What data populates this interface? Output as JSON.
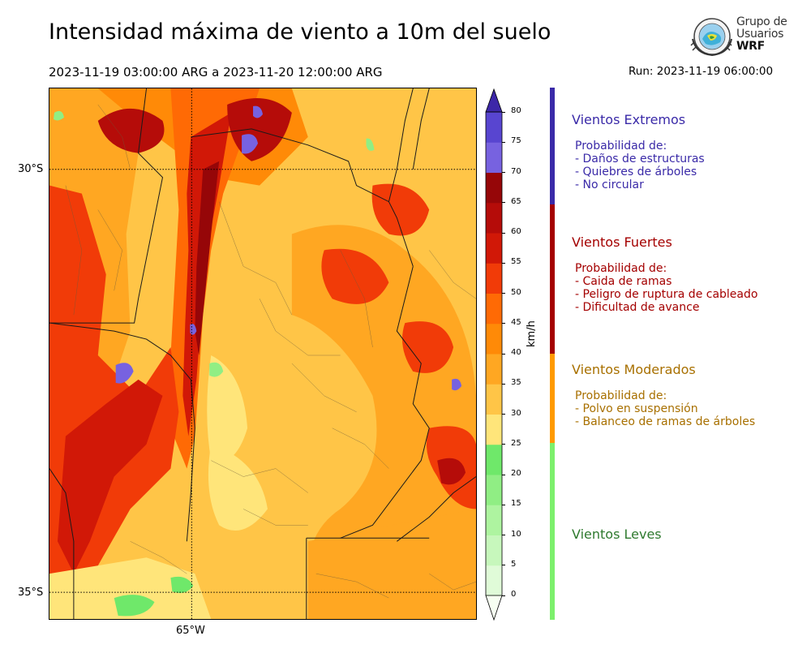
{
  "header": {
    "title": "Intensidad máxima de viento a 10m del suelo",
    "period": "2023-11-19 03:00:00 ARG  a  2023-11-20 12:00:00 ARG",
    "run": "Run: 2023-11-19 06:00:00"
  },
  "logo": {
    "line1": "Grupo de",
    "line2": "Usuarios",
    "line3": "WRF"
  },
  "map": {
    "lat_labels": [
      "30°S",
      "35°S"
    ],
    "lon_labels": [
      "65°W"
    ]
  },
  "colorbar": {
    "unit": "km/h",
    "ticks": [
      "0",
      "5",
      "10",
      "15",
      "20",
      "25",
      "30",
      "35",
      "40",
      "45",
      "50",
      "55",
      "60",
      "65",
      "70",
      "75",
      "80"
    ],
    "colors": [
      "#f7fff2",
      "#e0fbd8",
      "#c7f7bc",
      "#aef4a0",
      "#90ee84",
      "#6fe86a",
      "#ffe57a",
      "#ffc547",
      "#ffa722",
      "#ff8a07",
      "#ff6a05",
      "#f13b08",
      "#d11807",
      "#b50c09",
      "#960608",
      "#7762e0",
      "#5845d0",
      "#3f2fb7",
      "#3d27a8"
    ]
  },
  "categories": [
    {
      "title": "Vientos Extremos",
      "color": "#3a2aa8",
      "lines": [
        "Probabilidad de:",
        "- Daños de estructuras",
        "- Quiebres de árboles",
        "- No circular"
      ]
    },
    {
      "title": "Vientos Fuertes",
      "color": "#a40000",
      "lines": [
        "Probabilidad de:",
        "- Caida de ramas",
        "- Peligro de ruptura de cableado",
        "- Dificultad de avance"
      ]
    },
    {
      "title": "Vientos Moderados",
      "color": "#a87000",
      "lines": [
        "Probabilidad de:",
        "- Polvo en suspensión",
        "- Balanceo de ramas de árboles"
      ]
    },
    {
      "title": "Vientos Leves",
      "color": "#2f7a2f",
      "lines": []
    }
  ]
}
